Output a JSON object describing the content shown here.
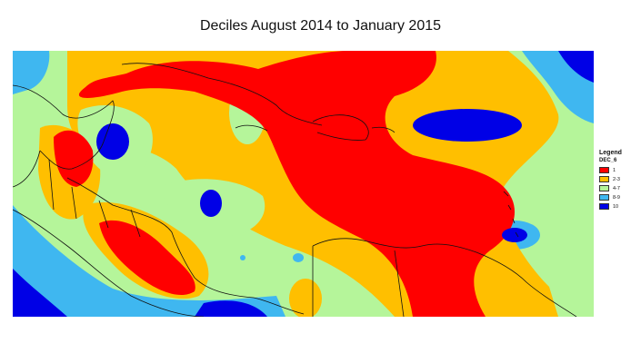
{
  "title": "Deciles August 2014 to January 2015",
  "legend": {
    "title": "Legend",
    "field": "DEC_6",
    "items": [
      {
        "label": "1",
        "color": "#ff0000"
      },
      {
        "label": "2-3",
        "color": "#ffbf00"
      },
      {
        "label": "4-7",
        "color": "#b5f59a"
      },
      {
        "label": "8-9",
        "color": "#3fb7f0"
      },
      {
        "label": "10",
        "color": "#0000e6"
      }
    ]
  }
}
